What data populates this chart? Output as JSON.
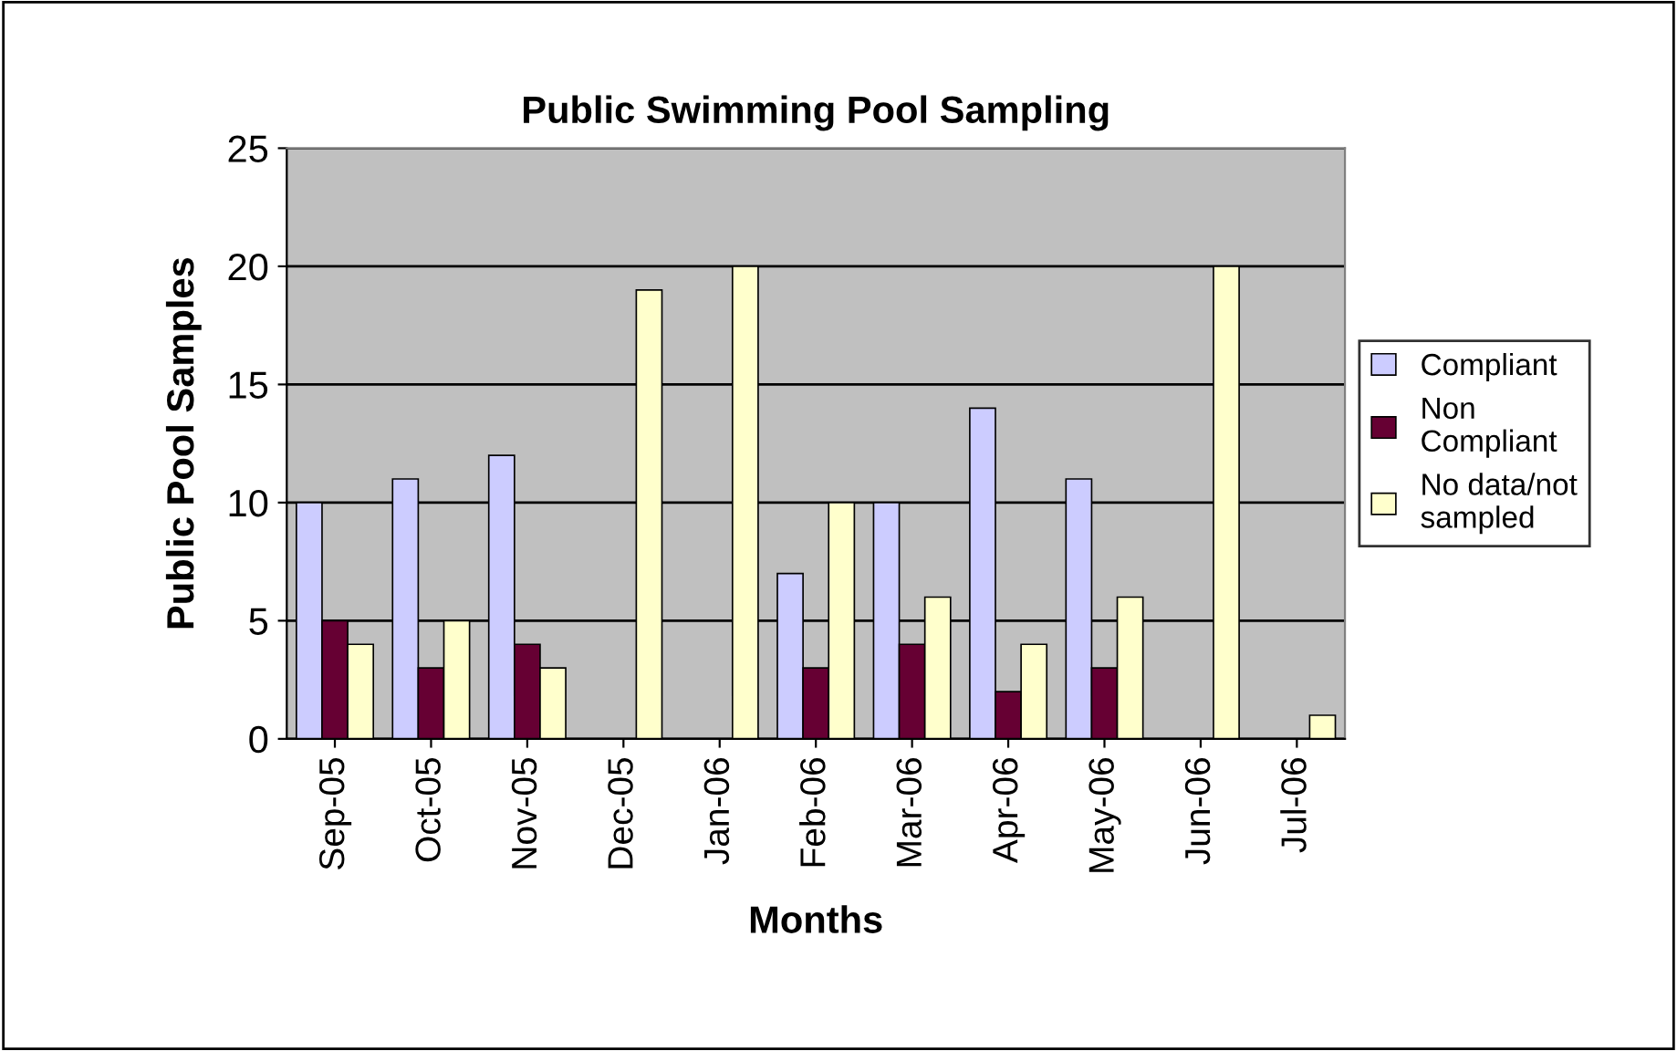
{
  "chart_data": {
    "type": "bar",
    "title": "Public Swimming Pool Sampling",
    "xlabel": "Months",
    "ylabel": "Public Pool Samples",
    "categories": [
      "Sep-05",
      "Oct-05",
      "Nov-05",
      "Dec-05",
      "Jan-06",
      "Feb-06",
      "Mar-06",
      "Apr-06",
      "May-06",
      "Jun-06",
      "Jul-06"
    ],
    "series": [
      {
        "name": "Compliant",
        "color": "#ccccff",
        "values": [
          10,
          11,
          12,
          null,
          null,
          7,
          10,
          14,
          11,
          null,
          null
        ]
      },
      {
        "name": "Non Compliant",
        "color": "#660033",
        "values": [
          5,
          3,
          4,
          null,
          null,
          3,
          4,
          2,
          3,
          null,
          null
        ]
      },
      {
        "name": "No data/not sampled",
        "color": "#ffffcc",
        "values": [
          4,
          5,
          3,
          19,
          20,
          10,
          6,
          4,
          6,
          20,
          1
        ]
      }
    ],
    "ylim": [
      0,
      25
    ],
    "yticks": [
      0,
      5,
      10,
      15,
      20,
      25
    ],
    "grid": "y",
    "legend": "right"
  }
}
